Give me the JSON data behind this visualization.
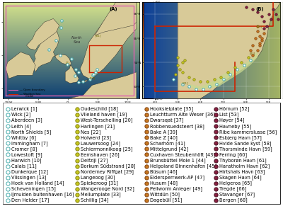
{
  "stations_col1": [
    [
      "Lerwick",
      1
    ],
    [
      "Wick",
      2
    ],
    [
      "Aberdeen",
      3
    ],
    [
      "Leith",
      4
    ],
    [
      "North Shields",
      5
    ],
    [
      "Whitby",
      6
    ],
    [
      "Immingham",
      7
    ],
    [
      "Cromer",
      8
    ],
    [
      "Lowestoft",
      9
    ],
    [
      "Harwich",
      10
    ],
    [
      "Calais",
      11
    ],
    [
      "Dunkerque",
      12
    ],
    [
      "Vlissingen",
      13
    ],
    [
      "Hoek van Holland",
      14
    ],
    [
      "Scheveningen",
      15
    ],
    [
      "IJmuiden buitenhaven",
      16
    ],
    [
      "Den Helder",
      17
    ]
  ],
  "stations_col2": [
    [
      "Oudeschild",
      18
    ],
    [
      "Vlieland haven",
      19
    ],
    [
      "West-Terschelling",
      20
    ],
    [
      "Harlingen",
      21
    ],
    [
      "Nes",
      22
    ],
    [
      "Holwerd",
      23
    ],
    [
      "Lauwersoog",
      24
    ],
    [
      "Schiermonnikoog",
      25
    ],
    [
      "Eemshaven",
      26
    ],
    [
      "Delfzijl",
      27
    ],
    [
      "Borkum Südstrand",
      28
    ],
    [
      "Norderney Riffgat",
      29
    ],
    [
      "Langeoog",
      30
    ],
    [
      "Spiekeroog",
      31
    ],
    [
      "Wangerooge Nord",
      32
    ],
    [
      "Mellumplate",
      33
    ],
    [
      "Schillig",
      34
    ]
  ],
  "stations_col3": [
    [
      "Hooksielplate",
      35
    ],
    [
      "Leuchtturm Alte Weser",
      36
    ],
    [
      "Dwarsqat",
      37
    ],
    [
      "Robbensuedsteert",
      38
    ],
    [
      "Bake A",
      39
    ],
    [
      "Bake Z",
      40
    ],
    [
      "Scharhörn",
      41
    ],
    [
      "Mittelgrund",
      42
    ],
    [
      "Cuxhaven Steubenhöft",
      43
    ],
    [
      "Brunsbüttel Mole 1",
      44
    ],
    [
      "Helgoland Binnenhafen",
      45
    ],
    [
      "Büsum",
      46
    ],
    [
      "Eidersperrwerk-AP",
      47
    ],
    [
      "Husum",
      48
    ],
    [
      "Pellworm Anleger",
      49
    ],
    [
      "Wittdün",
      50
    ],
    [
      "Dagebüll",
      51
    ]
  ],
  "stations_col4": [
    [
      "Hörnum",
      52
    ],
    [
      "List",
      53
    ],
    [
      "Høyer",
      54
    ],
    [
      "Havneby",
      55
    ],
    [
      "Ribe kammerslusse",
      56
    ],
    [
      "Esbjerg Havn",
      57
    ],
    [
      "Hvide Sande kyst",
      58
    ],
    [
      "Thorsminde Havn",
      59
    ],
    [
      "Ferring",
      60
    ],
    [
      "Thyborøn Havn",
      61
    ],
    [
      "Hanstholm Havn",
      62
    ],
    [
      "Hirtshals Havn",
      63
    ],
    [
      "Skagen Havn",
      64
    ],
    [
      "Helgeroa",
      65
    ],
    [
      "Tregde",
      66
    ],
    [
      "Stavanger",
      67
    ],
    [
      "Bergen",
      68
    ]
  ],
  "panel_a_label": "(A)",
  "panel_b_label": "(B)",
  "map_a_bg": "#a8c4d4",
  "map_b_bg": "#8ab8d4",
  "land_color": "#d8ca98",
  "land_edge": "#222222",
  "open_bnd_color": "#e060b0",
  "wadden_box_color": "#cc2200",
  "colorbar_a_colors": [
    "#08306b",
    "#2166ac",
    "#4393c3",
    "#92c5de",
    "#d1e5f0",
    "#ffffb2",
    "#fecc5c",
    "#fd8d3c",
    "#f03b20",
    "#bd0026"
  ],
  "colorbar_b_colors": [
    "#08306b",
    "#2166ac",
    "#4393c3",
    "#92c5de",
    "#d1e5f0",
    "#ffffb2",
    "#fecc5c",
    "#fd8d3c"
  ],
  "gauge_cyan_ec": "#44aaaa",
  "gauge_cyan_fc": "white",
  "gauge_yellow_fc": "#c8c820",
  "gauge_yellow_ec": "#808010",
  "gauge_orange_fc": "#c87820",
  "gauge_orange_ec": "#804010",
  "gauge_darkred_fc": "#882040",
  "gauge_darkred_ec": "#441020",
  "table_fontsize": 4.8,
  "table_marker_size": 3.8
}
